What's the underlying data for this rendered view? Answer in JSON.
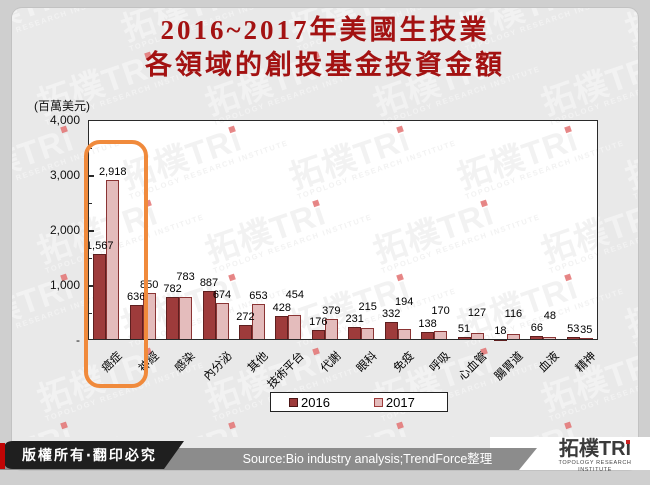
{
  "title": {
    "line1": "2016~2017年美國生技業",
    "line2": "各領域的創投基金投資金額"
  },
  "chart_data": {
    "type": "bar",
    "unit_label": "(百萬美元)",
    "categories": [
      "癌症",
      "神經",
      "感染",
      "內分泌",
      "其他",
      "技術平台",
      "代謝",
      "眼科",
      "免疫",
      "呼吸",
      "心血管",
      "腸胃道",
      "血液",
      "精神"
    ],
    "series": [
      {
        "name": "2016",
        "color": "#9e3b3b",
        "values": [
          1567,
          636,
          782,
          887,
          272,
          428,
          176,
          231,
          332,
          138,
          51,
          18,
          66,
          53
        ]
      },
      {
        "name": "2017",
        "color": "#e4bcbc",
        "values": [
          2918,
          850,
          783,
          674,
          653,
          454,
          379,
          215,
          194,
          170,
          127,
          116,
          48,
          35
        ]
      }
    ],
    "ylim": [
      0,
      4000
    ],
    "ytick_labels": [
      "4,000",
      "3,000",
      "2,000",
      "1,000",
      "-"
    ],
    "ytick_values": [
      4000,
      3000,
      2000,
      1000,
      0
    ],
    "grid": false,
    "legend_position": "bottom",
    "highlight_category": "癌症",
    "stagger_2017_labels": [
      false,
      false,
      true,
      false,
      false,
      true,
      false,
      true,
      true,
      true,
      true,
      true,
      true,
      false
    ]
  },
  "footer": {
    "copyright": "版權所有‧翻印必究",
    "source": "Source:Bio industry analysis;TrendForce整理",
    "logo": {
      "name": "拓樸TRi",
      "caption": "TOPOLOGY RESEARCH INSTITUTE"
    }
  },
  "watermark": {
    "text": "拓樸TRi",
    "caption": "TOPOLOGY RESEARCH INSTITUTE"
  },
  "colors": {
    "bar_2016": "#9e3b3b",
    "bar_2017": "#e4bcbc",
    "title": "#a31212",
    "highlight_ring": "#f08a3c",
    "footer_red_stripe": "#c00505",
    "footer_gray_bar": "#8c8c8c",
    "footer_black_plate": "#1f1f1f"
  }
}
